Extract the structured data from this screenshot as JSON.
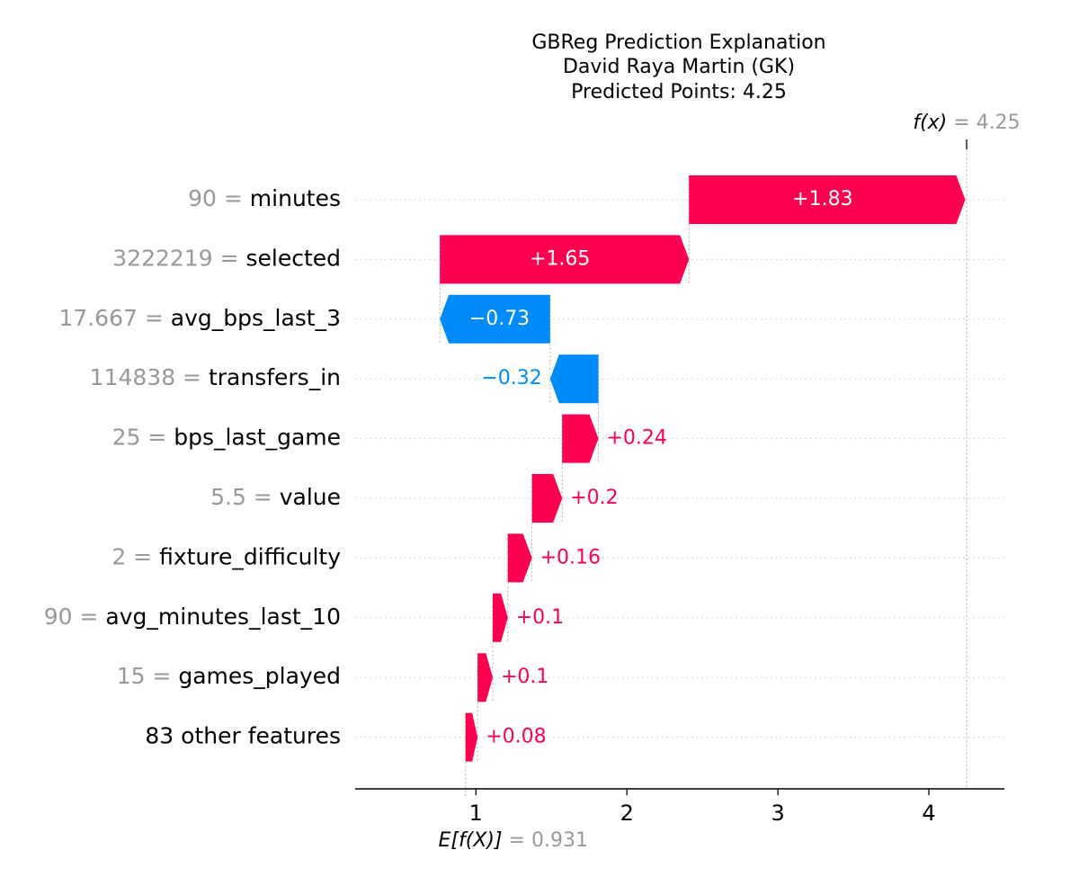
{
  "chart_data": {
    "type": "waterfall",
    "title_lines": [
      "GBReg Prediction Explanation",
      "David Raya Martin (GK)",
      "Predicted Points: 4.25"
    ],
    "base_value": 0.931,
    "base_label_lhs": "E[f(X)]",
    "base_label_rhs": "= 0.931",
    "final_value": 4.25,
    "final_label_lhs": "f(x)",
    "final_label_rhs": "= 4.25",
    "x_ticks": [
      1,
      2,
      3,
      4
    ],
    "xlim": [
      0.2,
      4.5
    ],
    "colors": {
      "positive": "#ff0051",
      "negative": "#008bfb",
      "value_text": "#999999"
    },
    "features": [
      {
        "value": "90",
        "name": "minutes",
        "shap": 1.83,
        "label": "+1.83"
      },
      {
        "value": "3222219",
        "name": "selected",
        "shap": 1.65,
        "label": "+1.65"
      },
      {
        "value": "17.667",
        "name": "avg_bps_last_3",
        "shap": -0.73,
        "label": "−0.73"
      },
      {
        "value": "114838",
        "name": "transfers_in",
        "shap": -0.32,
        "label": "−0.32"
      },
      {
        "value": "25",
        "name": "bps_last_game",
        "shap": 0.24,
        "label": "+0.24"
      },
      {
        "value": "5.5",
        "name": "value",
        "shap": 0.2,
        "label": "+0.2"
      },
      {
        "value": "2",
        "name": "fixture_difficulty",
        "shap": 0.16,
        "label": "+0.16"
      },
      {
        "value": "90",
        "name": "avg_minutes_last_10",
        "shap": 0.1,
        "label": "+0.1"
      },
      {
        "value": "15",
        "name": "games_played",
        "shap": 0.1,
        "label": "+0.1"
      },
      {
        "value": "",
        "name": "83 other features",
        "shap": 0.08,
        "label": "+0.08"
      }
    ]
  }
}
